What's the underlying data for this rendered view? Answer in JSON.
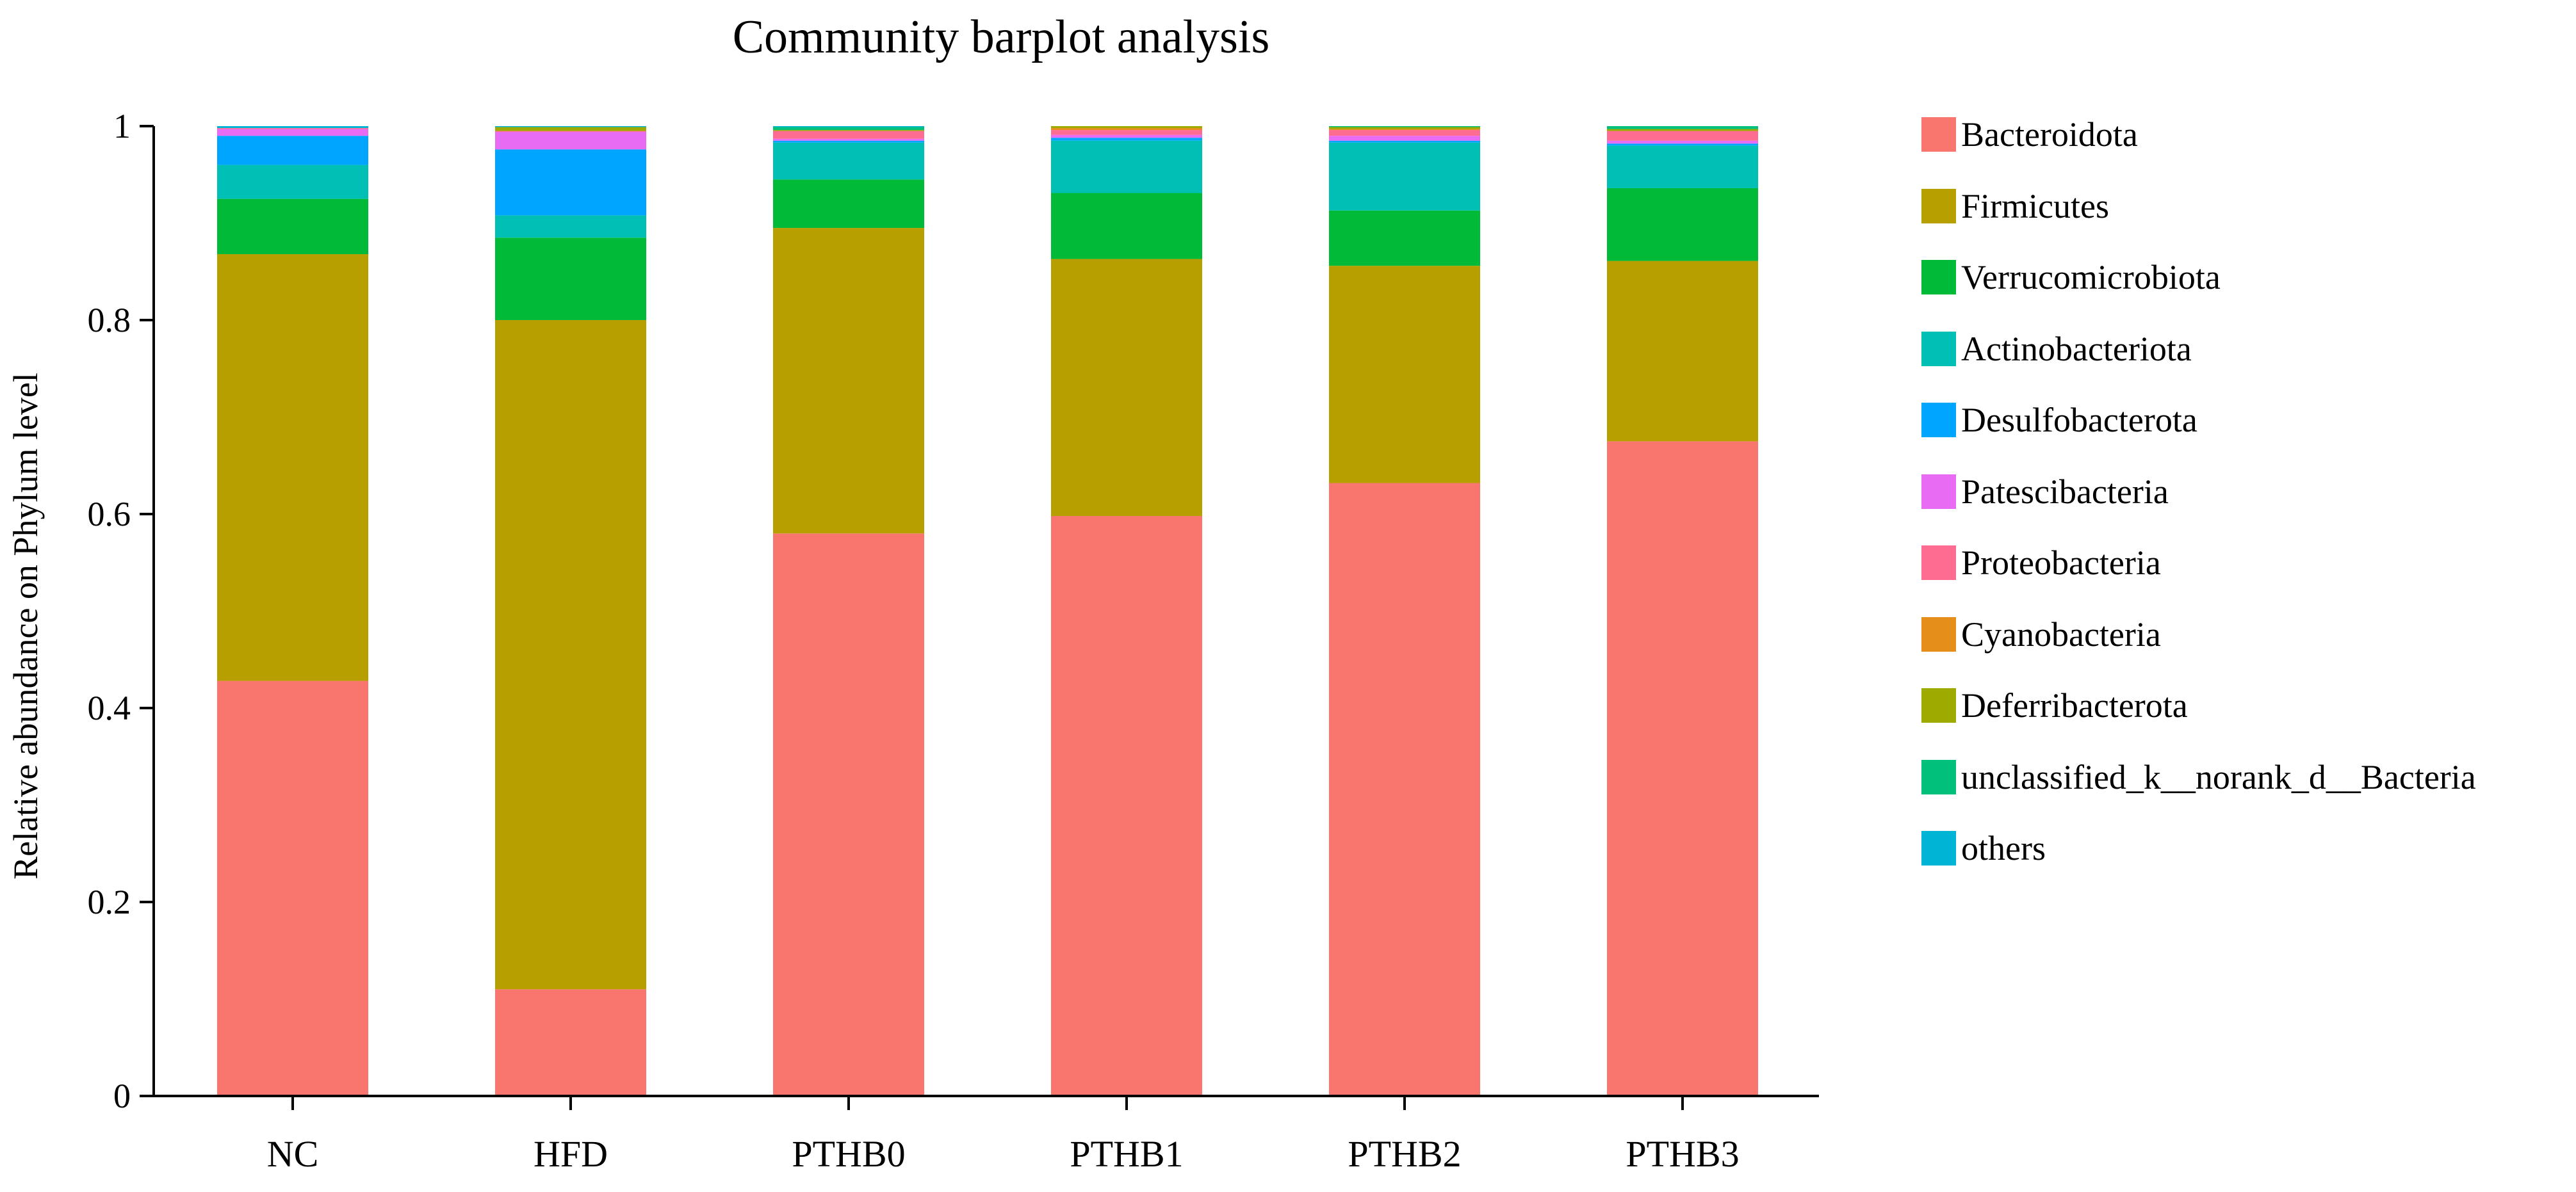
{
  "chart_data": {
    "type": "bar",
    "stacked": true,
    "title": "Community barplot analysis",
    "xlabel": "",
    "ylabel": "Relative abundance on Phylum level",
    "ylim": [
      0,
      1
    ],
    "yticks": [
      0,
      0.2,
      0.4,
      0.6,
      0.8,
      1
    ],
    "ytick_labels": [
      "0",
      "0.2",
      "0.4",
      "0.6",
      "0.8",
      "1"
    ],
    "categories": [
      "NC",
      "HFD",
      "PTHB0",
      "PTHB1",
      "PTHB2",
      "PTHB3"
    ],
    "legend_position": "right",
    "series": [
      {
        "name": "Bacteroidota",
        "color": "#F8766D",
        "values": [
          0.428,
          0.11,
          0.58,
          0.598,
          0.632,
          0.675
        ]
      },
      {
        "name": "Firmicutes",
        "color": "#B79F00",
        "values": [
          0.44,
          0.69,
          0.315,
          0.265,
          0.224,
          0.186
        ]
      },
      {
        "name": "Verrucomicrobiota",
        "color": "#00BA38",
        "values": [
          0.057,
          0.085,
          0.05,
          0.068,
          0.057,
          0.075
        ]
      },
      {
        "name": "Actinobacteriota",
        "color": "#00BFB4",
        "values": [
          0.035,
          0.023,
          0.038,
          0.054,
          0.07,
          0.044
        ]
      },
      {
        "name": "Desulfobacterota",
        "color": "#00A5FF",
        "values": [
          0.03,
          0.068,
          0.002,
          0.003,
          0.002,
          0.002
        ]
      },
      {
        "name": "Patescibacteria",
        "color": "#E76BF3",
        "values": [
          0.007,
          0.018,
          0.002,
          0.003,
          0.005,
          0.003
        ]
      },
      {
        "name": "Proteobacteria",
        "color": "#FF6C91",
        "values": [
          0.001,
          0.001,
          0.008,
          0.005,
          0.006,
          0.01
        ]
      },
      {
        "name": "Cyanobacteria",
        "color": "#E58E1A",
        "values": [
          0.0,
          0.0,
          0.0,
          0.002,
          0.001,
          0.0
        ]
      },
      {
        "name": "Deferribacterota",
        "color": "#9EAA00",
        "values": [
          0.0,
          0.004,
          0.001,
          0.002,
          0.002,
          0.002
        ]
      },
      {
        "name": "unclassified_k__norank_d__Bacteria",
        "color": "#00C07B",
        "values": [
          0.0,
          0.0,
          0.003,
          0.0,
          0.001,
          0.003
        ]
      },
      {
        "name": "others",
        "color": "#00B4D6",
        "values": [
          0.002,
          0.001,
          0.001,
          0.0,
          0.0,
          0.0
        ]
      }
    ]
  }
}
